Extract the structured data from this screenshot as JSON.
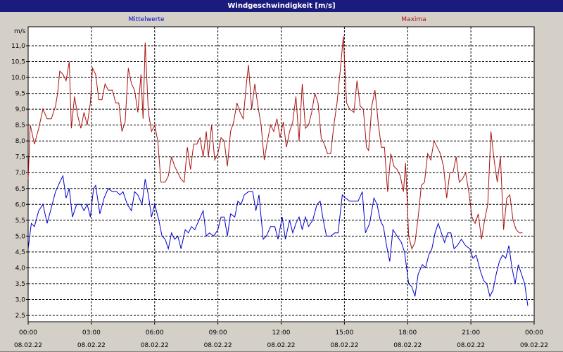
{
  "window": {
    "title": "Windgeschwindigkeit [m/s]"
  },
  "chart_data": {
    "type": "line",
    "title": "Windgeschwindigkeit [m/s]",
    "ylabel": "m/s",
    "ylim": [
      2.3,
      11.6
    ],
    "xlim": [
      "08.02.22 00:00",
      "09.02.22 00:00"
    ],
    "grid": true,
    "legend": "top",
    "y_ticks": [
      "2,5",
      "3,0",
      "3,5",
      "4,0",
      "4,5",
      "5,0",
      "5,5",
      "6,0",
      "6,5",
      "7,0",
      "7,5",
      "8,0",
      "8,5",
      "9,0",
      "9,5",
      "10,0",
      "10,5",
      "11,0"
    ],
    "x_ticks": [
      {
        "time": "00:00",
        "date": "08.02.22"
      },
      {
        "time": "03:00",
        "date": "08.02.22"
      },
      {
        "time": "06:00",
        "date": "08.02.22"
      },
      {
        "time": "09:00",
        "date": "08.02.22"
      },
      {
        "time": "12:00",
        "date": "08.02.22"
      },
      {
        "time": "15:00",
        "date": "08.02.22"
      },
      {
        "time": "18:00",
        "date": "08.02.22"
      },
      {
        "time": "21:00",
        "date": "08.02.22"
      },
      {
        "time": "00:00",
        "date": "09.02.22"
      }
    ],
    "series": [
      {
        "name": "Mittelwerte",
        "color": "#0000cc",
        "values": [
          [
            0,
            4.6
          ],
          [
            0.15,
            5.4
          ],
          [
            0.3,
            5.3
          ],
          [
            0.5,
            5.8
          ],
          [
            0.7,
            6.0
          ],
          [
            0.9,
            5.4
          ],
          [
            1.1,
            5.9
          ],
          [
            1.3,
            6.4
          ],
          [
            1.5,
            6.7
          ],
          [
            1.65,
            6.9
          ],
          [
            1.8,
            6.2
          ],
          [
            1.95,
            6.5
          ],
          [
            2.1,
            5.6
          ],
          [
            2.3,
            6.0
          ],
          [
            2.5,
            6.0
          ],
          [
            2.65,
            5.8
          ],
          [
            2.8,
            6.0
          ],
          [
            2.95,
            5.6
          ],
          [
            3.1,
            6.5
          ],
          [
            3.2,
            6.6
          ],
          [
            3.4,
            5.7
          ],
          [
            3.6,
            6.2
          ],
          [
            3.8,
            6.5
          ],
          [
            4.0,
            6.4
          ],
          [
            4.2,
            6.4
          ],
          [
            4.35,
            6.3
          ],
          [
            4.5,
            6.4
          ],
          [
            4.7,
            6.0
          ],
          [
            4.9,
            5.8
          ],
          [
            5.05,
            6.4
          ],
          [
            5.2,
            6.3
          ],
          [
            5.4,
            6.0
          ],
          [
            5.55,
            6.8
          ],
          [
            5.7,
            6.3
          ],
          [
            5.85,
            5.6
          ],
          [
            6.0,
            6.0
          ],
          [
            6.2,
            5.5
          ],
          [
            6.35,
            5.0
          ],
          [
            6.5,
            4.9
          ],
          [
            6.65,
            4.6
          ],
          [
            6.8,
            5.1
          ],
          [
            6.95,
            4.9
          ],
          [
            7.1,
            5.0
          ],
          [
            7.25,
            4.6
          ],
          [
            7.45,
            5.2
          ],
          [
            7.6,
            5.1
          ],
          [
            7.75,
            5.3
          ],
          [
            7.9,
            5.2
          ],
          [
            8.1,
            5.5
          ],
          [
            8.3,
            5.8
          ],
          [
            8.45,
            5.0
          ],
          [
            8.6,
            5.1
          ],
          [
            8.8,
            5.0
          ],
          [
            9.0,
            5.2
          ],
          [
            9.15,
            5.6
          ],
          [
            9.3,
            5.6
          ],
          [
            9.45,
            5.0
          ],
          [
            9.6,
            5.7
          ],
          [
            9.8,
            5.6
          ],
          [
            9.95,
            6.1
          ],
          [
            10.1,
            6.0
          ],
          [
            10.25,
            6.3
          ],
          [
            10.45,
            6.4
          ],
          [
            10.65,
            6.4
          ],
          [
            10.8,
            5.8
          ],
          [
            10.95,
            6.3
          ],
          [
            11.15,
            4.9
          ],
          [
            11.3,
            5.0
          ],
          [
            11.5,
            5.3
          ],
          [
            11.7,
            5.3
          ],
          [
            11.85,
            4.9
          ],
          [
            12.05,
            5.6
          ],
          [
            12.2,
            4.9
          ],
          [
            12.4,
            5.5
          ],
          [
            12.55,
            5.1
          ],
          [
            12.7,
            5.4
          ],
          [
            12.85,
            5.6
          ],
          [
            13.0,
            5.2
          ],
          [
            13.15,
            5.6
          ],
          [
            13.3,
            5.3
          ],
          [
            13.5,
            5.5
          ],
          [
            13.7,
            6.0
          ],
          [
            13.85,
            6.1
          ],
          [
            14.0,
            5.5
          ],
          [
            14.15,
            5.0
          ],
          [
            14.35,
            5.0
          ],
          [
            14.55,
            5.1
          ],
          [
            14.7,
            5.1
          ],
          [
            14.9,
            6.3
          ],
          [
            15.05,
            6.2
          ],
          [
            15.25,
            6.1
          ],
          [
            15.45,
            6.1
          ],
          [
            15.65,
            6.1
          ],
          [
            15.85,
            6.4
          ],
          [
            16.0,
            5.1
          ],
          [
            16.2,
            5.4
          ],
          [
            16.4,
            6.2
          ],
          [
            16.55,
            6.0
          ],
          [
            16.7,
            5.5
          ],
          [
            16.85,
            5.3
          ],
          [
            17.0,
            4.7
          ],
          [
            17.15,
            4.2
          ],
          [
            17.3,
            5.2
          ],
          [
            17.5,
            5.0
          ],
          [
            17.7,
            4.8
          ],
          [
            17.85,
            4.5
          ],
          [
            18.05,
            3.5
          ],
          [
            18.2,
            3.4
          ],
          [
            18.35,
            3.1
          ],
          [
            18.5,
            3.8
          ],
          [
            18.7,
            4.1
          ],
          [
            18.85,
            4.0
          ],
          [
            19.0,
            4.4
          ],
          [
            19.15,
            4.6
          ],
          [
            19.3,
            5.1
          ],
          [
            19.45,
            5.4
          ],
          [
            19.6,
            5.1
          ],
          [
            19.75,
            4.8
          ],
          [
            19.9,
            5.1
          ],
          [
            20.05,
            5.1
          ],
          [
            20.2,
            4.6
          ],
          [
            20.35,
            4.7
          ],
          [
            20.55,
            4.9
          ],
          [
            20.75,
            4.7
          ],
          [
            20.95,
            4.6
          ],
          [
            21.1,
            4.3
          ],
          [
            21.25,
            4.4
          ],
          [
            21.45,
            3.9
          ],
          [
            21.6,
            3.6
          ],
          [
            21.75,
            3.5
          ],
          [
            21.9,
            3.1
          ],
          [
            22.05,
            3.3
          ],
          [
            22.2,
            3.8
          ],
          [
            22.35,
            4.2
          ],
          [
            22.5,
            4.4
          ],
          [
            22.65,
            4.3
          ],
          [
            22.8,
            4.7
          ],
          [
            22.95,
            4.0
          ],
          [
            23.1,
            3.5
          ],
          [
            23.25,
            4.1
          ],
          [
            23.4,
            3.8
          ],
          [
            23.55,
            3.5
          ],
          [
            23.7,
            2.8
          ]
        ]
      },
      {
        "name": "Maxima",
        "color": "#aa1111",
        "values": [
          [
            0,
            6.8
          ],
          [
            0.1,
            8.5
          ],
          [
            0.3,
            7.9
          ],
          [
            0.5,
            8.4
          ],
          [
            0.7,
            9.0
          ],
          [
            0.9,
            8.7
          ],
          [
            1.1,
            8.7
          ],
          [
            1.3,
            9.1
          ],
          [
            1.4,
            9.5
          ],
          [
            1.5,
            10.2
          ],
          [
            1.65,
            10.1
          ],
          [
            1.8,
            9.9
          ],
          [
            1.95,
            10.5
          ],
          [
            2.05,
            8.4
          ],
          [
            2.2,
            9.4
          ],
          [
            2.35,
            8.8
          ],
          [
            2.5,
            8.4
          ],
          [
            2.65,
            8.9
          ],
          [
            2.8,
            8.5
          ],
          [
            2.95,
            9.2
          ],
          [
            3.05,
            10.3
          ],
          [
            3.2,
            10.1
          ],
          [
            3.35,
            9.3
          ],
          [
            3.5,
            9.3
          ],
          [
            3.65,
            9.8
          ],
          [
            3.8,
            9.6
          ],
          [
            4.0,
            9.6
          ],
          [
            4.15,
            9.2
          ],
          [
            4.3,
            9.2
          ],
          [
            4.45,
            8.3
          ],
          [
            4.6,
            8.6
          ],
          [
            4.75,
            10.3
          ],
          [
            4.9,
            9.8
          ],
          [
            5.05,
            9.6
          ],
          [
            5.2,
            8.9
          ],
          [
            5.35,
            10.1
          ],
          [
            5.45,
            8.7
          ],
          [
            5.55,
            11.1
          ],
          [
            5.7,
            8.9
          ],
          [
            5.85,
            8.3
          ],
          [
            6.0,
            8.5
          ],
          [
            6.15,
            8.0
          ],
          [
            6.3,
            6.7
          ],
          [
            6.5,
            6.7
          ],
          [
            6.65,
            6.9
          ],
          [
            6.8,
            7.5
          ],
          [
            6.95,
            7.2
          ],
          [
            7.1,
            7.0
          ],
          [
            7.25,
            6.8
          ],
          [
            7.4,
            6.7
          ],
          [
            7.55,
            7.8
          ],
          [
            7.7,
            7.1
          ],
          [
            7.85,
            7.9
          ],
          [
            8.0,
            7.9
          ],
          [
            8.15,
            8.1
          ],
          [
            8.3,
            7.5
          ],
          [
            8.45,
            8.3
          ],
          [
            8.55,
            7.5
          ],
          [
            8.7,
            8.5
          ],
          [
            8.85,
            7.4
          ],
          [
            9.0,
            7.6
          ],
          [
            9.15,
            8.1
          ],
          [
            9.3,
            8.0
          ],
          [
            9.45,
            7.2
          ],
          [
            9.6,
            8.3
          ],
          [
            9.75,
            8.6
          ],
          [
            9.9,
            9.2
          ],
          [
            10.05,
            8.9
          ],
          [
            10.2,
            8.7
          ],
          [
            10.35,
            9.8
          ],
          [
            10.45,
            10.4
          ],
          [
            10.6,
            9.0
          ],
          [
            10.75,
            9.8
          ],
          [
            10.9,
            9.1
          ],
          [
            11.05,
            8.5
          ],
          [
            11.2,
            7.4
          ],
          [
            11.35,
            8.0
          ],
          [
            11.5,
            8.5
          ],
          [
            11.65,
            8.3
          ],
          [
            11.8,
            8.7
          ],
          [
            11.95,
            8.1
          ],
          [
            12.1,
            8.6
          ],
          [
            12.25,
            7.8
          ],
          [
            12.4,
            8.3
          ],
          [
            12.55,
            8.6
          ],
          [
            12.7,
            9.4
          ],
          [
            12.85,
            8.0
          ],
          [
            13.0,
            9.8
          ],
          [
            13.15,
            8.4
          ],
          [
            13.3,
            8.5
          ],
          [
            13.45,
            8.9
          ],
          [
            13.6,
            9.5
          ],
          [
            13.75,
            9.2
          ],
          [
            13.9,
            8.1
          ],
          [
            14.05,
            7.9
          ],
          [
            14.2,
            7.6
          ],
          [
            14.35,
            7.6
          ],
          [
            14.5,
            8.5
          ],
          [
            14.65,
            9.2
          ],
          [
            14.8,
            10.2
          ],
          [
            14.95,
            11.3
          ],
          [
            15.1,
            9.2
          ],
          [
            15.25,
            9.0
          ],
          [
            15.45,
            8.9
          ],
          [
            15.6,
            9.9
          ],
          [
            15.75,
            9.1
          ],
          [
            15.9,
            9.0
          ],
          [
            16.05,
            7.8
          ],
          [
            16.15,
            7.7
          ],
          [
            16.3,
            9.1
          ],
          [
            16.45,
            9.6
          ],
          [
            16.6,
            8.6
          ],
          [
            16.75,
            7.8
          ],
          [
            16.9,
            7.8
          ],
          [
            17.05,
            6.4
          ],
          [
            17.2,
            7.6
          ],
          [
            17.35,
            7.2
          ],
          [
            17.5,
            7.1
          ],
          [
            17.65,
            6.9
          ],
          [
            17.8,
            6.4
          ],
          [
            17.9,
            7.3
          ],
          [
            18.05,
            5.0
          ],
          [
            18.2,
            4.6
          ],
          [
            18.35,
            4.8
          ],
          [
            18.5,
            5.6
          ],
          [
            18.65,
            6.6
          ],
          [
            18.8,
            6.7
          ],
          [
            18.95,
            7.6
          ],
          [
            19.1,
            7.4
          ],
          [
            19.25,
            8.0
          ],
          [
            19.4,
            7.8
          ],
          [
            19.55,
            7.6
          ],
          [
            19.7,
            7.2
          ],
          [
            19.85,
            6.2
          ],
          [
            20.0,
            7.0
          ],
          [
            20.15,
            7.0
          ],
          [
            20.3,
            7.5
          ],
          [
            20.45,
            6.7
          ],
          [
            20.6,
            6.8
          ],
          [
            20.75,
            7.0
          ],
          [
            20.9,
            6.4
          ],
          [
            21.05,
            5.6
          ],
          [
            21.2,
            5.4
          ],
          [
            21.35,
            5.7
          ],
          [
            21.5,
            4.9
          ],
          [
            21.65,
            5.5
          ],
          [
            21.8,
            6.0
          ],
          [
            21.95,
            8.3
          ],
          [
            22.1,
            7.4
          ],
          [
            22.25,
            6.7
          ],
          [
            22.4,
            7.5
          ],
          [
            22.55,
            5.2
          ],
          [
            22.7,
            6.2
          ],
          [
            22.85,
            6.3
          ],
          [
            23.0,
            5.5
          ],
          [
            23.15,
            5.2
          ],
          [
            23.3,
            5.1
          ],
          [
            23.45,
            5.1
          ]
        ]
      }
    ]
  }
}
